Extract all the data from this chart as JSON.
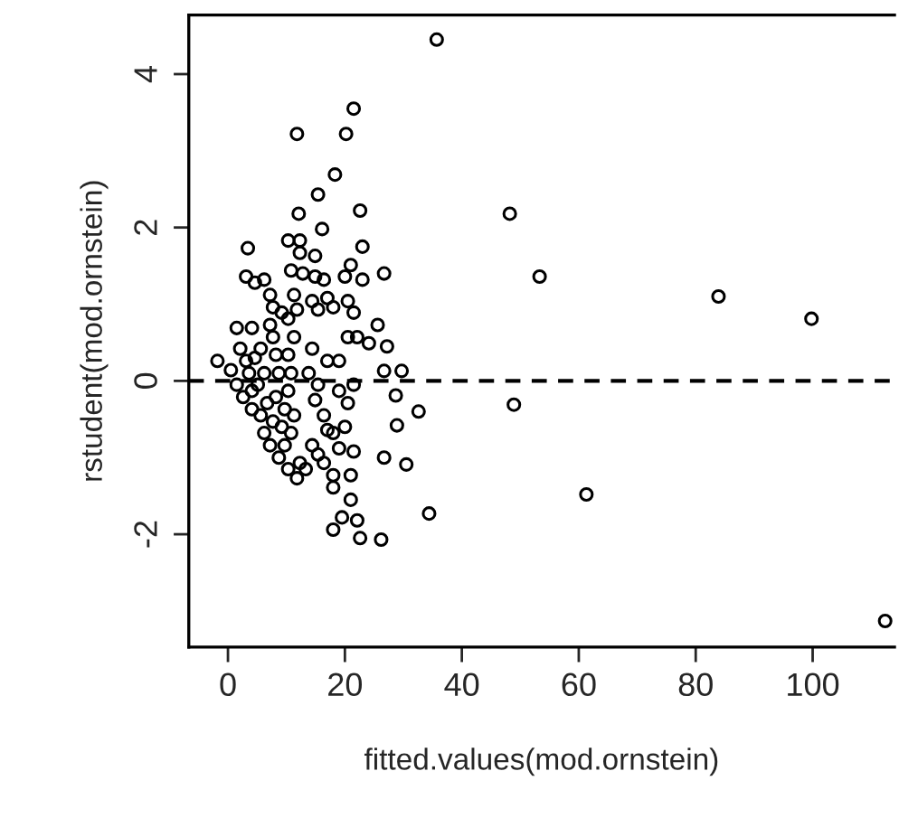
{
  "chart_data": {
    "type": "scatter",
    "xlabel": "fitted.values(mod.ornstein)",
    "ylabel": "rstudent(mod.ornstein)",
    "xlim": [
      -6.7,
      114
    ],
    "ylim": [
      -3.47,
      4.77
    ],
    "xticks": [
      0,
      20,
      40,
      60,
      80,
      100
    ],
    "yticks": [
      -2,
      0,
      2,
      4
    ],
    "grid": false,
    "marker": "circle",
    "ref_lines": [
      {
        "axis": "y",
        "value": 0,
        "label": null,
        "line_style": "dashed",
        "color": "#000000"
      }
    ],
    "series": [
      {
        "color": "#000000",
        "x": [
          -1.8,
          0.5,
          3.4,
          3.1,
          4.6,
          6.2,
          7.2,
          4.1,
          1.5,
          2.1,
          3.1,
          7.2,
          5.6,
          7.7,
          4.6,
          1.5,
          2.6,
          4.1,
          5.6,
          6.7,
          8.2,
          4.1,
          6.2,
          7.2,
          8.7,
          10.3,
          11.8,
          12.3,
          9.7,
          10.8,
          11.3,
          9.7,
          10.3,
          10.8,
          10.3,
          11.3,
          10.3,
          11.8,
          10.3,
          12.3,
          12.3,
          14.9,
          10.8,
          12.8,
          14.9,
          16.4,
          11.3,
          14.4,
          17,
          15.4,
          18,
          20.5,
          21,
          20,
          23,
          21.5,
          20.5,
          22.1,
          24.1,
          14.4,
          17,
          19,
          13.8,
          15.4,
          14.9,
          16.4,
          19,
          20.5,
          21.5,
          20,
          18,
          17,
          19,
          15.4,
          16.4,
          14.4,
          13.3,
          18,
          21,
          21.5,
          18,
          21,
          9.2,
          7.7,
          5.1,
          3.6,
          6.2,
          8.7,
          8.2,
          9.2,
          7.7,
          23,
          22.6,
          26.7,
          25.6,
          27.2,
          26.7,
          29.7,
          28.7,
          28.9,
          26.7,
          30.5,
          32.6,
          34.4,
          26.2,
          22.6,
          22.1,
          19.5,
          18,
          35.7,
          21.5,
          11.8,
          20.2,
          18.3,
          15.4,
          12.1,
          16.1,
          48.2,
          53.3,
          83.9,
          99.8,
          48.9,
          61.3,
          112.4
        ],
        "values": [
          0.26,
          0.14,
          1.73,
          1.36,
          1.28,
          1.32,
          1.12,
          0.69,
          0.69,
          0.42,
          0.26,
          0.73,
          0.42,
          0.57,
          0.3,
          -0.05,
          -0.21,
          -0.37,
          -0.45,
          -0.29,
          -0.21,
          -0.13,
          -0.68,
          -0.84,
          -1.0,
          -1.15,
          -1.27,
          -1.07,
          -0.84,
          -0.68,
          -0.45,
          -0.37,
          -0.13,
          0.1,
          0.34,
          0.57,
          0.81,
          0.93,
          1.83,
          1.83,
          1.67,
          1.63,
          1.44,
          1.4,
          1.36,
          1.32,
          1.12,
          1.04,
          1.08,
          0.93,
          0.96,
          1.04,
          1.51,
          1.36,
          1.32,
          0.89,
          0.57,
          0.57,
          0.49,
          0.42,
          0.26,
          0.26,
          0.1,
          -0.05,
          -0.25,
          -0.45,
          -0.13,
          -0.29,
          -0.05,
          -0.6,
          -0.68,
          -0.64,
          -0.88,
          -0.96,
          -1.07,
          -0.84,
          -1.15,
          -1.23,
          -1.23,
          -0.92,
          -1.39,
          -1.55,
          -0.6,
          -0.53,
          -0.05,
          0.1,
          0.1,
          0.1,
          0.34,
          0.89,
          0.96,
          1.75,
          2.22,
          1.4,
          0.73,
          0.45,
          0.13,
          0.13,
          -0.19,
          -0.58,
          -1.0,
          -1.09,
          -0.4,
          -1.73,
          -2.07,
          -2.05,
          -1.82,
          -1.78,
          -1.94,
          4.45,
          3.55,
          3.22,
          3.22,
          2.69,
          2.43,
          2.18,
          1.98,
          2.18,
          1.36,
          1.1,
          0.81,
          -0.31,
          -1.48,
          -3.13
        ]
      }
    ]
  }
}
